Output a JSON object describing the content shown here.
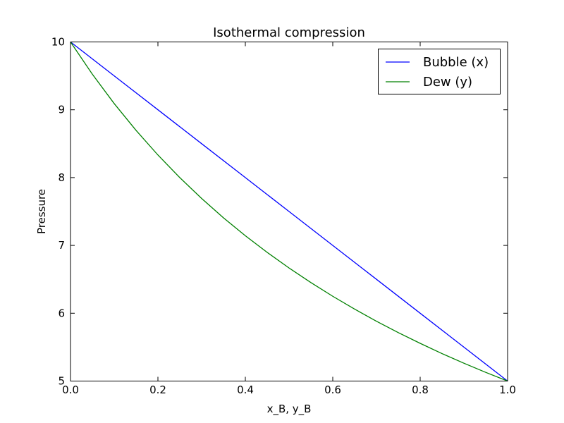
{
  "chart_data": {
    "type": "line",
    "title": "Isothermal compression",
    "xlabel": "x_B, y_B",
    "ylabel": "Pressure",
    "xlim": [
      0.0,
      1.0
    ],
    "ylim": [
      5,
      10
    ],
    "xticks": [
      "0.0",
      "0.2",
      "0.4",
      "0.6",
      "0.8",
      "1.0"
    ],
    "yticks": [
      "5",
      "6",
      "7",
      "8",
      "9",
      "10"
    ],
    "grid": false,
    "legend_position": "top-right",
    "series": [
      {
        "name": "Bubble (x)",
        "color": "#0000ff",
        "x": [
          0.0,
          0.1,
          0.2,
          0.3,
          0.4,
          0.5,
          0.6,
          0.7,
          0.8,
          0.9,
          1.0
        ],
        "y": [
          10.0,
          9.5,
          9.0,
          8.5,
          8.0,
          7.5,
          7.0,
          6.5,
          6.0,
          5.5,
          5.0
        ]
      },
      {
        "name": "Dew (y)",
        "color": "#008000",
        "x": [
          0.0,
          0.05,
          0.1,
          0.15,
          0.2,
          0.25,
          0.3,
          0.35,
          0.4,
          0.45,
          0.5,
          0.55,
          0.6,
          0.65,
          0.7,
          0.75,
          0.8,
          0.85,
          0.9,
          0.95,
          1.0
        ],
        "y": [
          10.0,
          9.524,
          9.091,
          8.696,
          8.333,
          8.0,
          7.692,
          7.407,
          7.143,
          6.897,
          6.667,
          6.452,
          6.25,
          6.061,
          5.882,
          5.714,
          5.556,
          5.405,
          5.263,
          5.128,
          5.0
        ]
      }
    ]
  }
}
